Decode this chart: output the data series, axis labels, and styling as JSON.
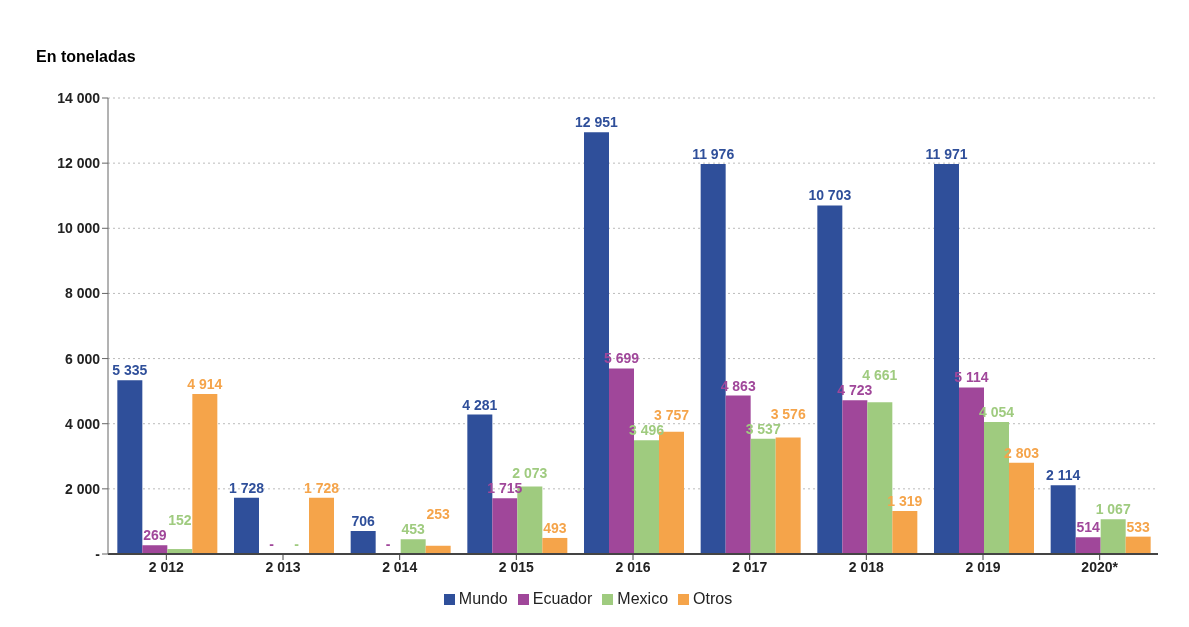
{
  "chart_data": {
    "type": "bar",
    "ylabel": "En toneladas",
    "categories": [
      "2 012",
      "2 013",
      "2 014",
      "2 015",
      "2 016",
      "2 017",
      "2 018",
      "2 019",
      "2020*"
    ],
    "series": [
      {
        "name": "Mundo",
        "color": "#2f4f9a",
        "values": [
          5335,
          1728,
          706,
          4281,
          12951,
          11976,
          10703,
          11971,
          2114
        ],
        "value_labels": [
          "5 335",
          "1 728",
          "706",
          "4 281",
          "12 951",
          "11 976",
          "10 703",
          "11 971",
          "2 114"
        ]
      },
      {
        "name": "Ecuador",
        "color": "#a0479a",
        "values": [
          269,
          0,
          0,
          1715,
          5699,
          4863,
          4723,
          5114,
          514
        ],
        "value_labels": [
          "269",
          "-",
          "-",
          "1 715",
          "5 699",
          "4 863",
          "4 723",
          "5 114",
          "514"
        ]
      },
      {
        "name": "Mexico",
        "color": "#9fcb7f",
        "values": [
          152,
          0,
          453,
          2073,
          3496,
          3537,
          4661,
          4054,
          1067
        ],
        "value_labels": [
          "152",
          "-",
          "453",
          "2 073",
          "3 496",
          "3 537",
          "4 661",
          "4 054",
          "1 067"
        ]
      },
      {
        "name": "Otros",
        "color": "#f5a44a",
        "values": [
          4914,
          1728,
          253,
          493,
          3757,
          3576,
          1319,
          2803,
          533
        ],
        "value_labels": [
          "4 914",
          "1 728",
          "253",
          "493",
          "3 757",
          "3 576",
          "1 319",
          "2 803",
          "533"
        ]
      }
    ],
    "ylim": [
      0,
      14000
    ],
    "yticks": [
      {
        "value": 0,
        "label": "-"
      },
      {
        "value": 2000,
        "label": "2 000"
      },
      {
        "value": 4000,
        "label": "4 000"
      },
      {
        "value": 6000,
        "label": "6 000"
      },
      {
        "value": 8000,
        "label": "8 000"
      },
      {
        "value": 10000,
        "label": "10 000"
      },
      {
        "value": 12000,
        "label": "12 000"
      },
      {
        "value": 14000,
        "label": "14 000"
      }
    ],
    "grid": "y",
    "legend": "bottom"
  }
}
